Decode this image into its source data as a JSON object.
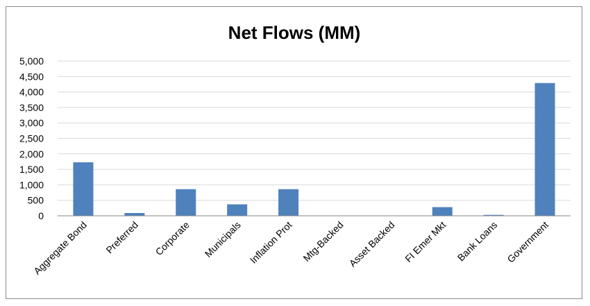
{
  "chart_data": {
    "type": "bar",
    "title": "Net Flows (MM)",
    "xlabel": "",
    "ylabel": "",
    "categories": [
      "Aggregate Bond",
      "Preferred",
      "Corporate",
      "Municipals",
      "Inflation Prot",
      "Mtg-Backed",
      "Asset Backed",
      "FI Emer Mkt",
      "Bank Loans",
      "Government"
    ],
    "values": [
      1730,
      90,
      860,
      370,
      860,
      0,
      0,
      280,
      30,
      4290
    ],
    "ylim": [
      0,
      5000
    ],
    "yticks": [
      "0",
      "500",
      "1,000",
      "1,500",
      "2,000",
      "2,500",
      "3,000",
      "3,500",
      "4,000",
      "4,500",
      "5,000"
    ],
    "grid": true,
    "legend": "none",
    "bar_color": "#4f81bd"
  }
}
